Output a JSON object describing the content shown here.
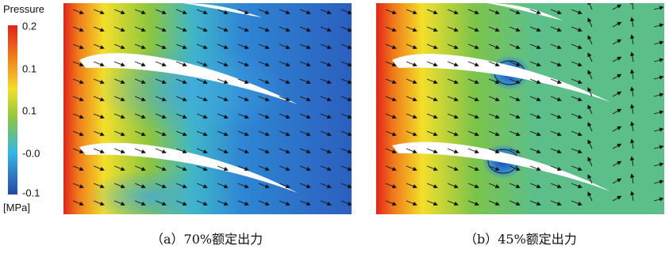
{
  "legend": {
    "title": "Pressure",
    "unit": "[MPa]",
    "ticks": [
      "0.2",
      "0.1",
      "0.1",
      "-0.0",
      "-0.1"
    ]
  },
  "colors": {
    "high": "#e2231a",
    "mid": "#8cc63f",
    "low": "#2447a8",
    "blade": "#ffffff"
  },
  "panels": [
    {
      "caption": "（a）70%额定出力"
    },
    {
      "caption": "（b）45%额定出力"
    }
  ]
}
